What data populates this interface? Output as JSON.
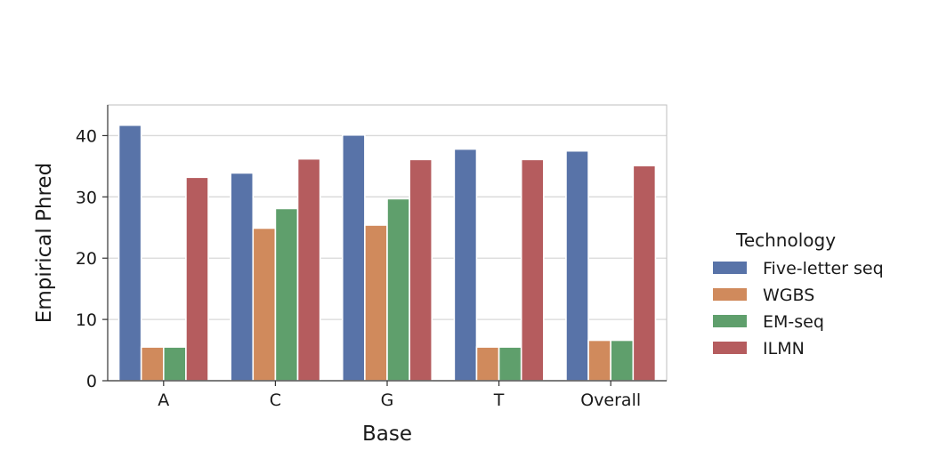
{
  "chart_data": {
    "type": "bar",
    "xlabel": "Base",
    "ylabel": "Empirical Phred",
    "categories": [
      "A",
      "C",
      "G",
      "T",
      "Overall"
    ],
    "ylim": [
      0,
      45
    ],
    "yticks": [
      0,
      10,
      20,
      30,
      40
    ],
    "grid": true,
    "legend": {
      "title": "Technology",
      "placement": "right"
    },
    "series": [
      {
        "name": "Five-letter seq",
        "color": "#5873a8",
        "values": [
          41.7,
          33.9,
          40.1,
          37.8,
          37.5
        ]
      },
      {
        "name": "WGBS",
        "color": "#d08a5c",
        "values": [
          5.5,
          24.9,
          25.4,
          5.5,
          6.6
        ]
      },
      {
        "name": "EM-seq",
        "color": "#5f9f6c",
        "values": [
          5.5,
          28.1,
          29.7,
          5.5,
          6.6
        ]
      },
      {
        "name": "ILMN",
        "color": "#b55c5e",
        "values": [
          33.2,
          36.2,
          36.1,
          36.1,
          35.1
        ]
      }
    ]
  }
}
